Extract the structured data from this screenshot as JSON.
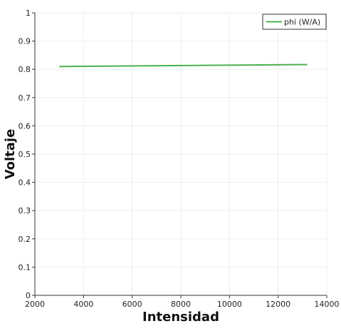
{
  "chart_data": {
    "type": "line",
    "xlabel": "Intensidad",
    "ylabel": "Voltaje",
    "xlim": [
      2000,
      14000
    ],
    "ylim": [
      0,
      1
    ],
    "x_ticks": [
      2000,
      4000,
      6000,
      8000,
      10000,
      12000,
      14000
    ],
    "x_tick_labels": [
      "2000",
      "4000",
      "6000",
      "8000",
      "10000",
      "12000",
      "14000"
    ],
    "y_ticks": [
      0,
      0.1,
      0.2,
      0.3,
      0.4,
      0.5,
      0.6,
      0.7,
      0.8,
      0.9,
      1
    ],
    "y_tick_labels": [
      "0",
      "0.1",
      "0.2",
      "0.3",
      "0.4",
      "0.5",
      "0.6",
      "0.7",
      "0.8",
      "0.9",
      "1"
    ],
    "grid": true,
    "legend_position": "top-right",
    "series": [
      {
        "name": "phi (W/A)",
        "color": "#4caf50",
        "x": [
          3000,
          13200
        ],
        "y": [
          0.81,
          0.817
        ]
      }
    ]
  }
}
